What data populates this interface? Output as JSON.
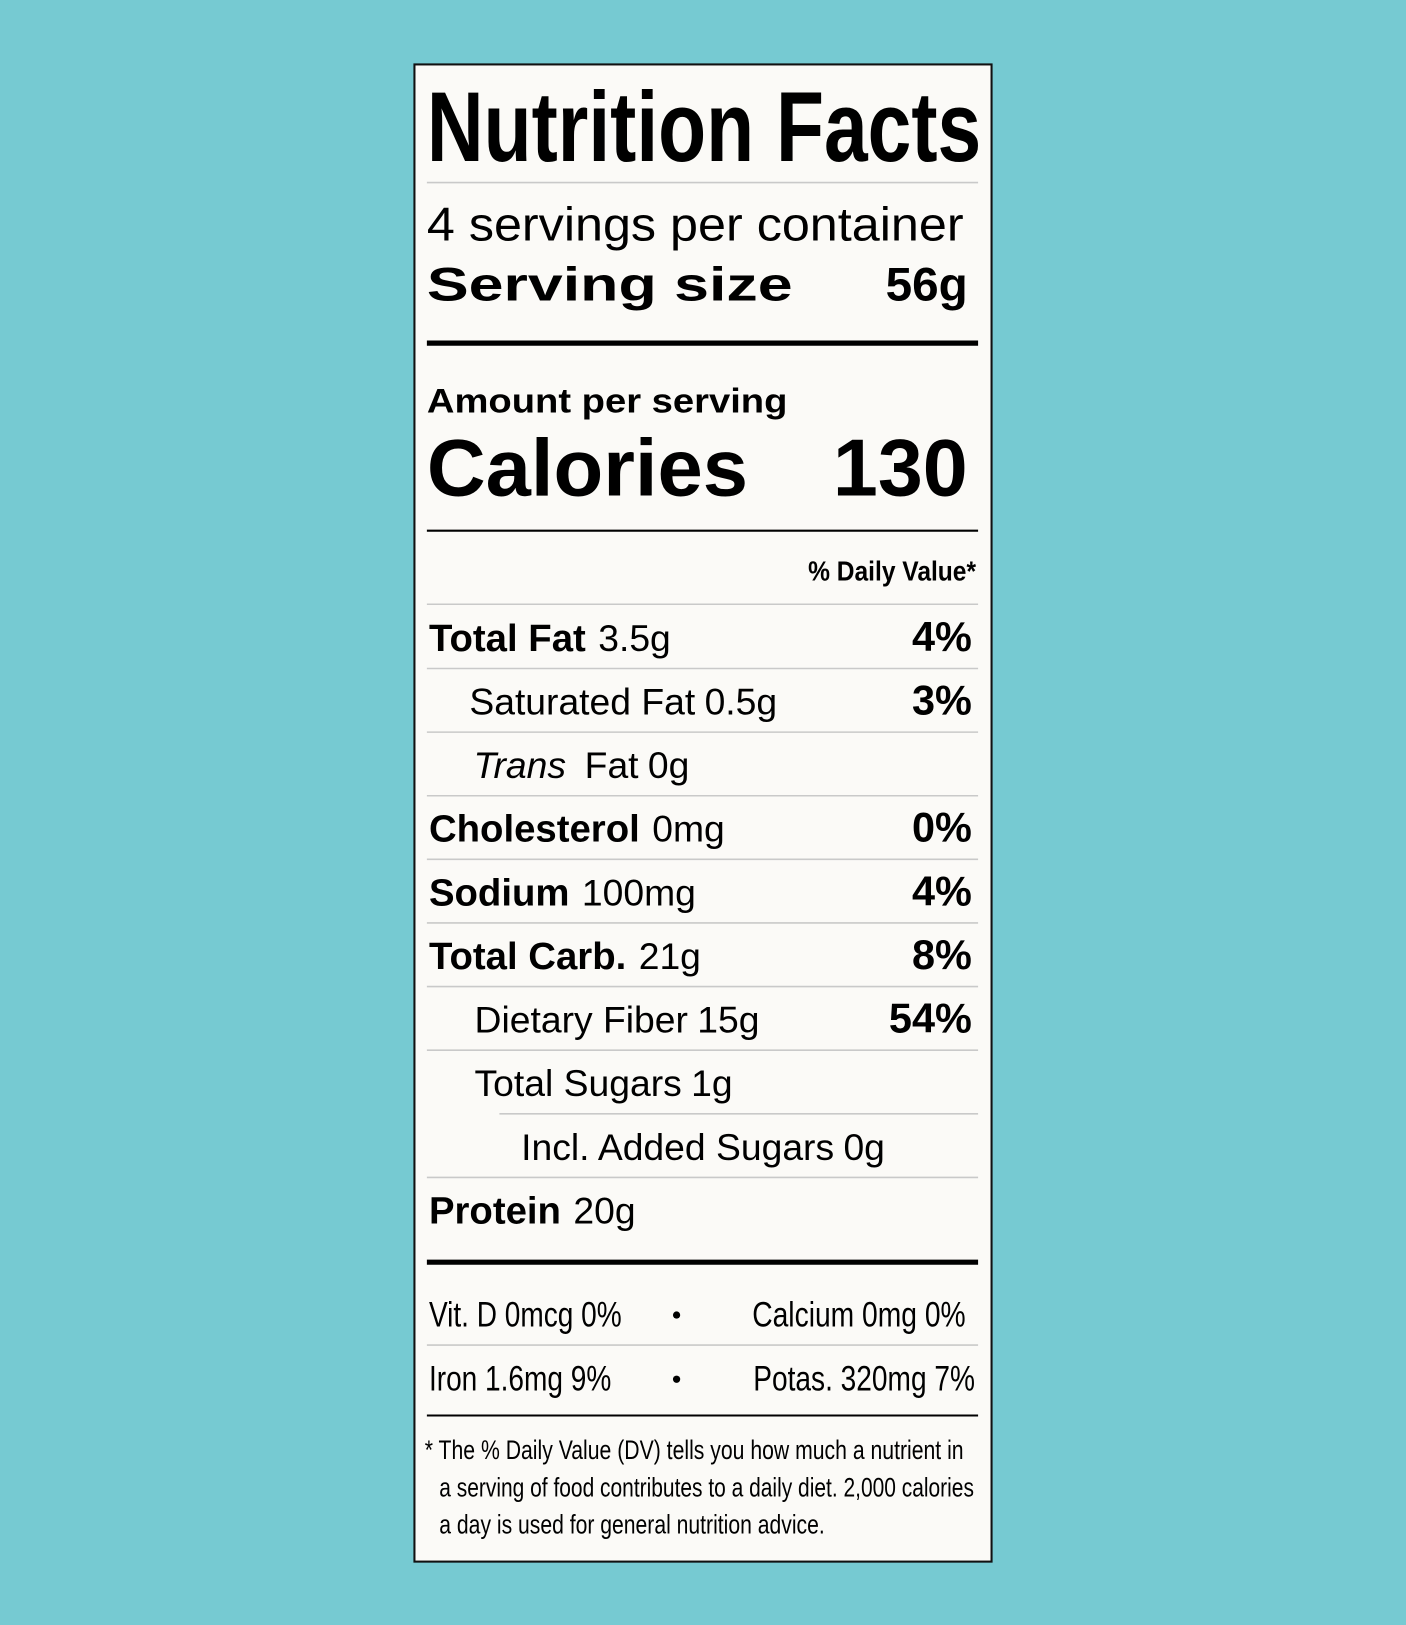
{
  "title": "Nutrition Facts",
  "servings": "4 servings per container",
  "serving_size": {
    "label": "Serving size",
    "value": "56g"
  },
  "amount_per_serving": "Amount per serving",
  "calories": {
    "label": "Calories",
    "value": 130
  },
  "daily_value_header": "% Daily Value*",
  "nutrients": [
    {
      "name": "Total Fat",
      "amount": "3.5g",
      "dv": "4%"
    },
    {
      "name": "Saturated Fat",
      "amount": "0.5g",
      "dv": "3%"
    },
    {
      "name_italic": "Trans",
      "name": "Fat",
      "amount": "0g"
    },
    {
      "name": "Cholesterol",
      "amount": "0mg",
      "dv": "0%"
    },
    {
      "name": "Sodium",
      "amount": "100mg",
      "dv": "4%"
    },
    {
      "name": "Total Carb.",
      "amount": "21g",
      "dv": "8%"
    },
    {
      "name": "Dietary Fiber",
      "amount": "15g",
      "dv": "54%"
    },
    {
      "name": "Total Sugars",
      "amount": "1g"
    },
    {
      "name": "Incl. Added Sugars",
      "amount": "0g"
    },
    {
      "name": "Protein",
      "amount": "20g"
    }
  ],
  "minerals": [
    [
      "Vit. D 0mcg 0%",
      "Calcium 0mg 0%"
    ],
    [
      "Iron 1.6mg 9%",
      "Potas. 320mg 7%"
    ]
  ],
  "footnote": [
    "* The % Daily Value (DV) tells you how much a nutrient in",
    "a serving of food contributes to a daily diet. 2,000 calories",
    "a day is used for general nutrition advice."
  ]
}
